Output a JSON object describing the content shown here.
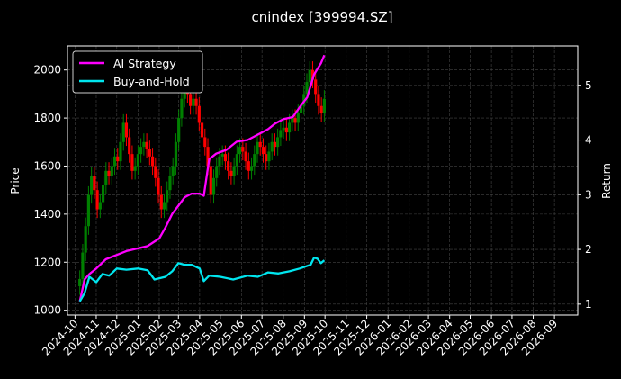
{
  "chart_data": {
    "type": "line",
    "title": "cnindex [399994.SZ]",
    "ylabel": "Price",
    "y2label": "Return",
    "ylim": [
      980,
      2100
    ],
    "y2lim": [
      0.8,
      5.72
    ],
    "yticks": [
      1000,
      1200,
      1400,
      1600,
      1800,
      2000
    ],
    "y2ticks": [
      1,
      2,
      3,
      4,
      5
    ],
    "xlim": [
      "2024-09-20",
      "2026-10-05"
    ],
    "xticks": [
      "2024-10",
      "2024-11",
      "2024-12",
      "2025-01",
      "2025-02",
      "2025-03",
      "2025-04",
      "2025-05",
      "2025-06",
      "2025-07",
      "2025-08",
      "2025-09",
      "2025-10",
      "2025-11",
      "2025-12",
      "2026-01",
      "2026-02",
      "2026-03",
      "2026-04",
      "2026-05",
      "2026-06",
      "2026-07",
      "2026-08",
      "2026-09"
    ],
    "grid": true,
    "legend": "top-left",
    "colors": {
      "ai": "#ff00ff",
      "bh": "#00e5ee",
      "up": "#008000",
      "down": "#ff0000",
      "grid": "#444444"
    },
    "candles": {
      "x_range": [
        "2024-10-08",
        "2025-09-30"
      ],
      "close": [
        1130,
        1240,
        1350,
        1480,
        1560,
        1500,
        1420,
        1450,
        1520,
        1580,
        1560,
        1600,
        1640,
        1620,
        1700,
        1780,
        1720,
        1650,
        1580,
        1600,
        1650,
        1680,
        1700,
        1670,
        1640,
        1600,
        1550,
        1480,
        1420,
        1450,
        1500,
        1560,
        1600,
        1700,
        1800,
        1880,
        1920,
        1900,
        1850,
        1880,
        1850,
        1780,
        1720,
        1680,
        1600,
        1480,
        1550,
        1600,
        1640,
        1650,
        1620,
        1580,
        1560,
        1600,
        1650,
        1680,
        1660,
        1620,
        1580,
        1600,
        1650,
        1700,
        1680,
        1650,
        1620,
        1660,
        1700,
        1680,
        1720,
        1750,
        1760,
        1740,
        1780,
        1800,
        1780,
        1820,
        1850,
        1900,
        1950,
        2000,
        1960,
        1900,
        1850,
        1820,
        1880
      ],
      "range": 80
    },
    "series": [
      {
        "name": "AI Strategy",
        "axis": "right",
        "color": "#ff00ff",
        "x": [
          "2024-10-08",
          "2024-10-15",
          "2024-10-22",
          "2024-11-01",
          "2024-11-15",
          "2024-12-01",
          "2024-12-15",
          "2025-01-01",
          "2025-01-15",
          "2025-02-01",
          "2025-02-10",
          "2025-02-20",
          "2025-03-01",
          "2025-03-10",
          "2025-03-20",
          "2025-04-01",
          "2025-04-07",
          "2025-04-15",
          "2025-04-25",
          "2025-05-10",
          "2025-05-25",
          "2025-06-10",
          "2025-06-25",
          "2025-07-10",
          "2025-07-20",
          "2025-08-01",
          "2025-08-15",
          "2025-08-25",
          "2025-09-05",
          "2025-09-15",
          "2025-09-25",
          "2025-09-30"
        ],
        "y": [
          1.05,
          1.45,
          1.55,
          1.65,
          1.82,
          1.9,
          1.97,
          2.02,
          2.06,
          2.2,
          2.4,
          2.65,
          2.8,
          2.95,
          3.02,
          3.02,
          2.98,
          3.65,
          3.75,
          3.82,
          3.97,
          4.0,
          4.1,
          4.2,
          4.3,
          4.38,
          4.42,
          4.6,
          4.78,
          5.2,
          5.4,
          5.55
        ]
      },
      {
        "name": "Buy-and-Hold",
        "axis": "right",
        "color": "#00e5ee",
        "x": [
          "2024-10-08",
          "2024-10-15",
          "2024-10-22",
          "2024-11-01",
          "2024-11-10",
          "2024-11-20",
          "2024-12-01",
          "2024-12-15",
          "2025-01-01",
          "2025-01-15",
          "2025-01-25",
          "2025-02-10",
          "2025-02-20",
          "2025-03-01",
          "2025-03-10",
          "2025-03-20",
          "2025-04-01",
          "2025-04-07",
          "2025-04-15",
          "2025-05-01",
          "2025-05-20",
          "2025-06-10",
          "2025-06-25",
          "2025-07-10",
          "2025-07-25",
          "2025-08-10",
          "2025-08-25",
          "2025-09-10",
          "2025-09-15",
          "2025-09-20",
          "2025-09-25",
          "2025-09-30"
        ],
        "y": [
          1.05,
          1.2,
          1.5,
          1.4,
          1.55,
          1.52,
          1.65,
          1.63,
          1.65,
          1.62,
          1.45,
          1.5,
          1.6,
          1.75,
          1.72,
          1.72,
          1.65,
          1.42,
          1.52,
          1.5,
          1.45,
          1.52,
          1.5,
          1.58,
          1.56,
          1.6,
          1.65,
          1.72,
          1.85,
          1.83,
          1.75,
          1.8
        ]
      }
    ]
  }
}
